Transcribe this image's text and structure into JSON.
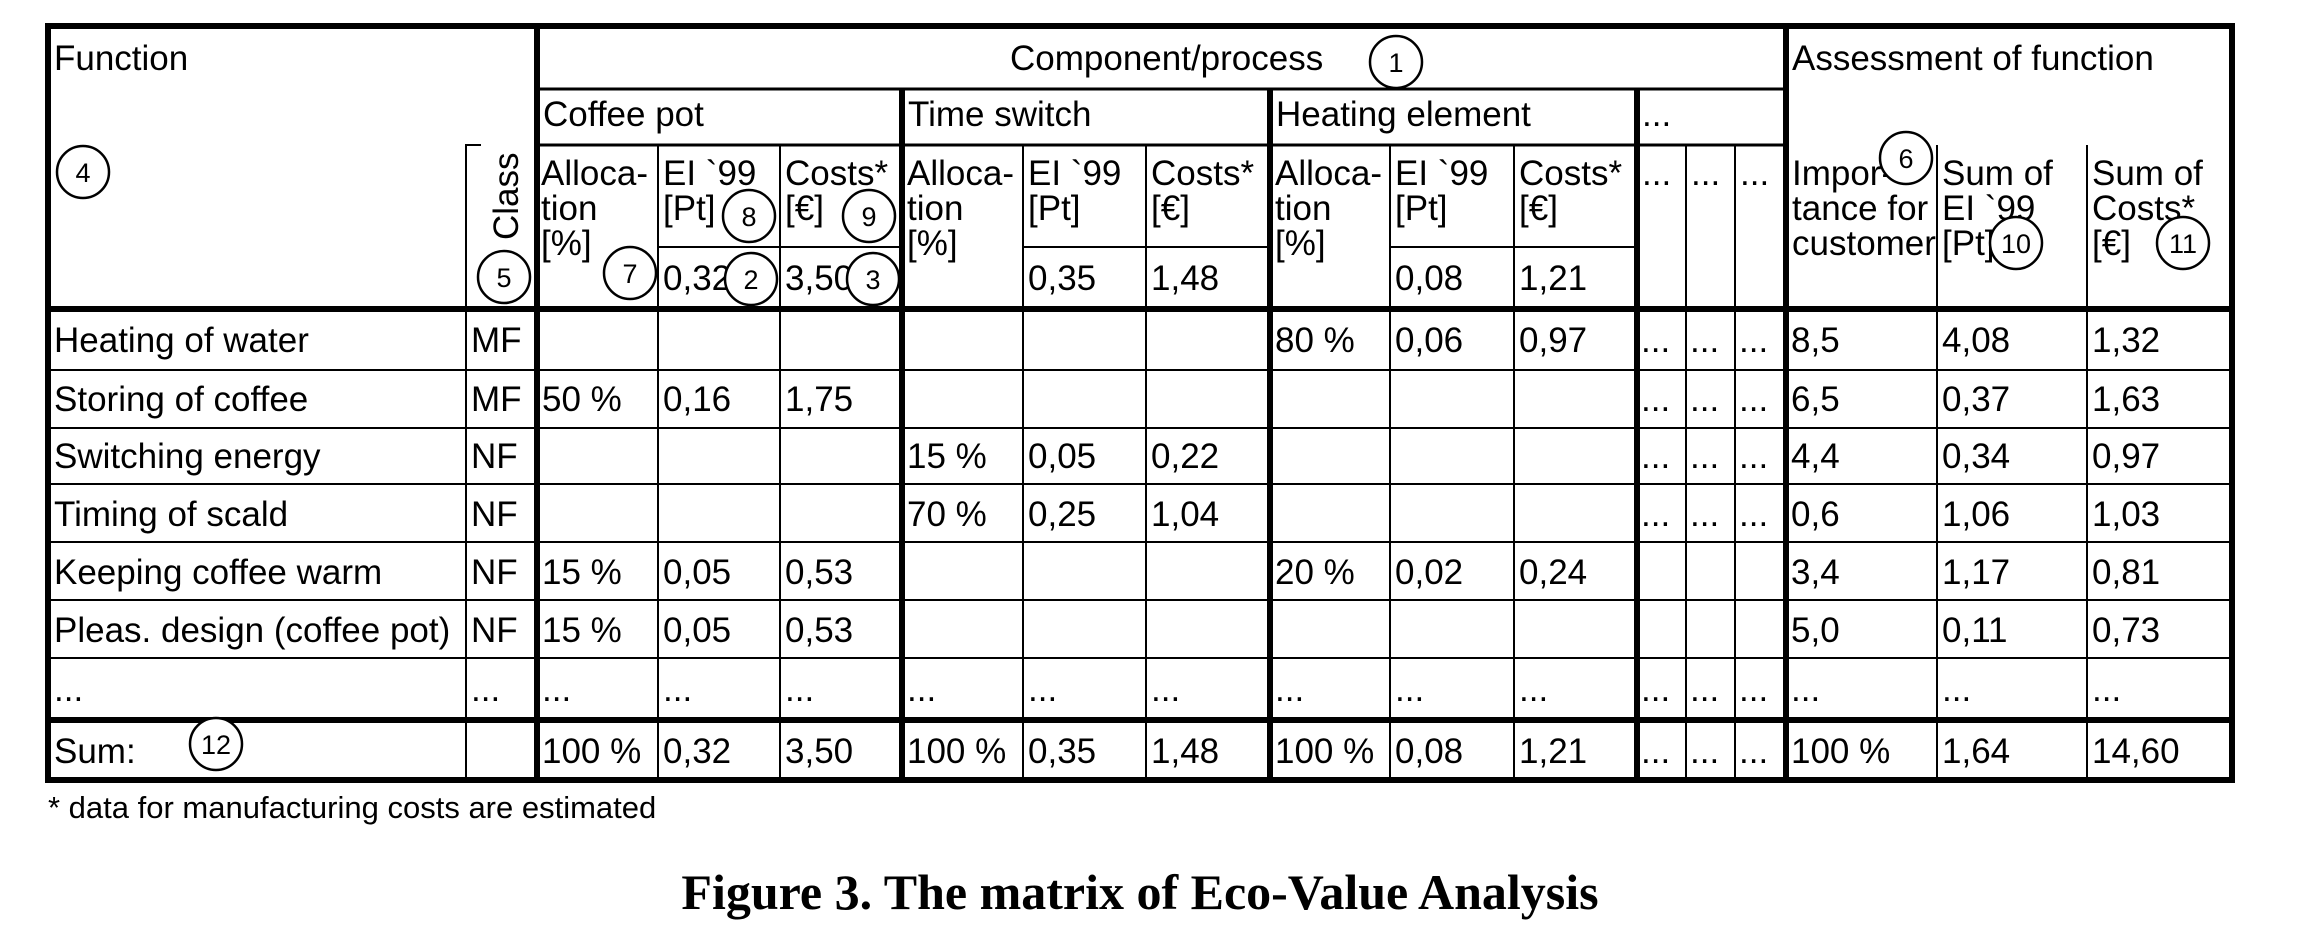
{
  "header": {
    "function": "Function",
    "component_process": "Component/process",
    "assessment": "Assessment of function",
    "class": "Class",
    "components": [
      "Coffee pot",
      "Time switch",
      "Heating element",
      "..."
    ],
    "sub_alloc": [
      "Alloca-",
      "tion",
      "[%]"
    ],
    "sub_ei": [
      "EI `99",
      "[Pt]"
    ],
    "sub_costs": [
      "Costs*",
      "[€]"
    ],
    "importance": [
      "Impor-",
      "tance for",
      "customer"
    ],
    "sum_ei": [
      "Sum of",
      "EI `99",
      "[Pt]"
    ],
    "sum_costs": [
      "Sum of",
      "Costs*",
      "[€]"
    ],
    "totals": [
      {
        "ei": "0,32",
        "costs": "3,50"
      },
      {
        "ei": "0,35",
        "costs": "1,48"
      },
      {
        "ei": "0,08",
        "costs": "1,21"
      }
    ],
    "ellipsis": "..."
  },
  "rows": [
    {
      "function": "Heating of water",
      "class": "MF",
      "c1": [
        "",
        "",
        ""
      ],
      "c2": [
        "",
        "",
        ""
      ],
      "c3": [
        "80 %",
        "0,06",
        "0,97"
      ],
      "dots": [
        "...",
        "...",
        "..."
      ],
      "assess": [
        "8,5",
        "4,08",
        "1,32"
      ]
    },
    {
      "function": "Storing of coffee",
      "class": "MF",
      "c1": [
        "50 %",
        "0,16",
        "1,75"
      ],
      "c2": [
        "",
        "",
        ""
      ],
      "c3": [
        "",
        "",
        ""
      ],
      "dots": [
        "...",
        "...",
        "..."
      ],
      "assess": [
        "6,5",
        "0,37",
        "1,63"
      ]
    },
    {
      "function": "Switching energy",
      "class": "NF",
      "c1": [
        "",
        "",
        ""
      ],
      "c2": [
        "15 %",
        "0,05",
        "0,22"
      ],
      "c3": [
        "",
        "",
        ""
      ],
      "dots": [
        "...",
        "...",
        "..."
      ],
      "assess": [
        "4,4",
        "0,34",
        "0,97"
      ]
    },
    {
      "function": "Timing of scald",
      "class": "NF",
      "c1": [
        "",
        "",
        ""
      ],
      "c2": [
        "70 %",
        "0,25",
        "1,04"
      ],
      "c3": [
        "",
        "",
        ""
      ],
      "dots": [
        "...",
        "...",
        "..."
      ],
      "assess": [
        "0,6",
        "1,06",
        "1,03"
      ]
    },
    {
      "function": "Keeping coffee warm",
      "class": "NF",
      "c1": [
        "15 %",
        "0,05",
        "0,53"
      ],
      "c2": [
        "",
        "",
        ""
      ],
      "c3": [
        "20 %",
        "0,02",
        "0,24"
      ],
      "dots": [
        "",
        "",
        ""
      ],
      "assess": [
        "3,4",
        "1,17",
        "0,81"
      ]
    },
    {
      "function": "Pleas. design (coffee pot)",
      "class": "NF",
      "c1": [
        "15 %",
        "0,05",
        "0,53"
      ],
      "c2": [
        "",
        "",
        ""
      ],
      "c3": [
        "",
        "",
        ""
      ],
      "dots": [
        "",
        "",
        ""
      ],
      "assess": [
        "5,0",
        "0,11",
        "0,73"
      ]
    },
    {
      "function": "...",
      "class": "...",
      "c1": [
        "...",
        "...",
        "..."
      ],
      "c2": [
        "...",
        "...",
        "..."
      ],
      "c3": [
        "...",
        "...",
        "..."
      ],
      "dots": [
        "...",
        "...",
        "..."
      ],
      "assess": [
        "...",
        "...",
        "..."
      ]
    }
  ],
  "sum_row": {
    "label": "Sum:",
    "c1": [
      "100 %",
      "0,32",
      "3,50"
    ],
    "c2": [
      "100 %",
      "0,35",
      "1,48"
    ],
    "c3": [
      "100 %",
      "0,08",
      "1,21"
    ],
    "dots": [
      "...",
      "...",
      "..."
    ],
    "assess": [
      "100 %",
      "1,64",
      "14,60"
    ]
  },
  "markers": [
    "1",
    "2",
    "3",
    "4",
    "5",
    "6",
    "7",
    "8",
    "9",
    "10",
    "11",
    "12"
  ],
  "footnote": "* data for manufacturing costs are estimated",
  "caption": "Figure 3. The matrix of Eco-Value Analysis"
}
